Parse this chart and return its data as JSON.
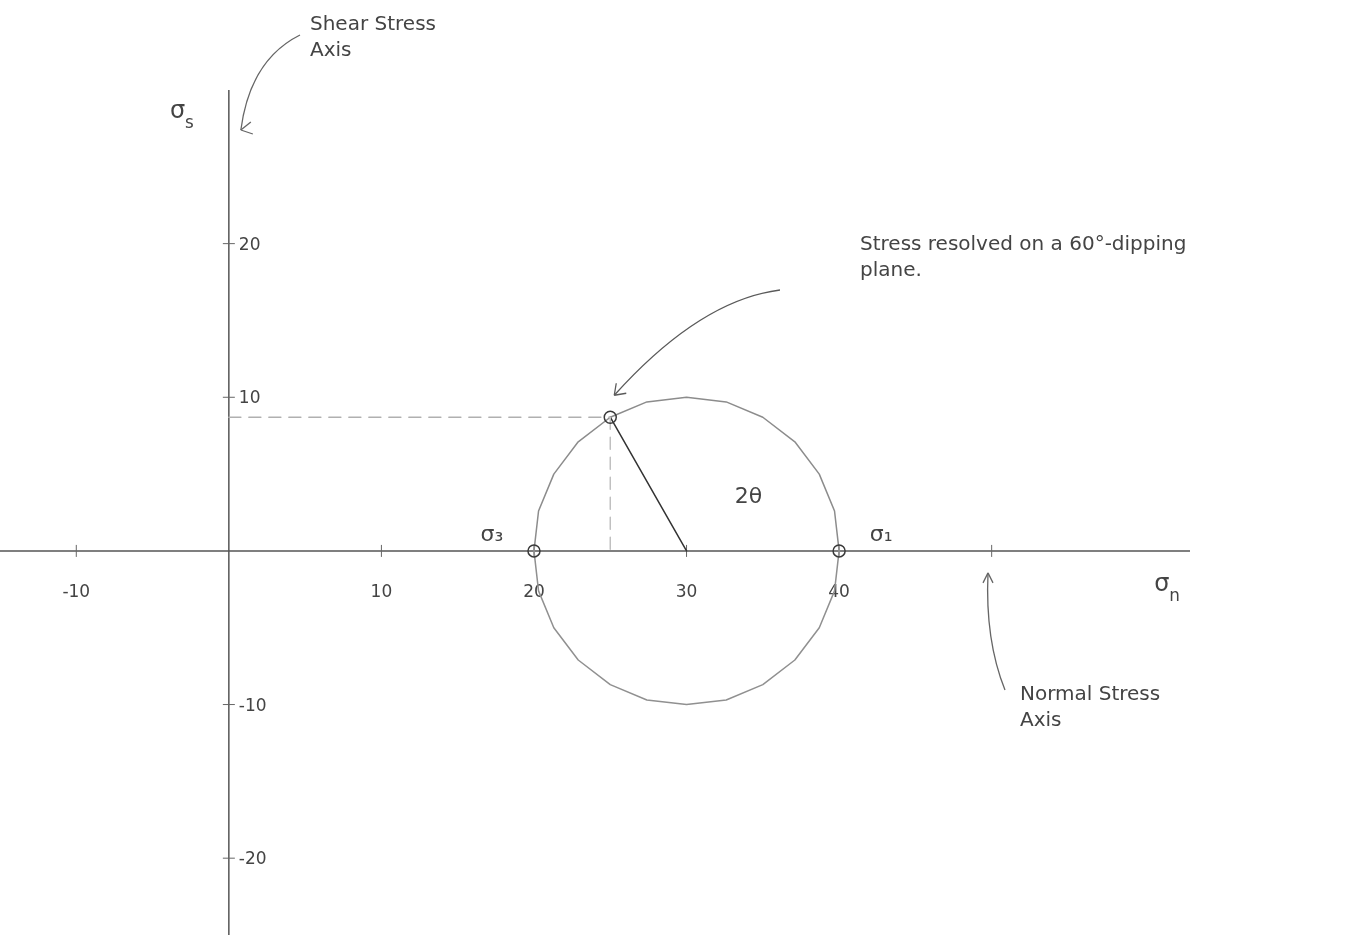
{
  "chart_data": {
    "type": "line",
    "xlabel": "σ$_{n}$",
    "ylabel": "σ$_{s}$",
    "xlim": [
      -15,
      63
    ],
    "ylim": [
      -25,
      30
    ],
    "xticks": [
      -10,
      10,
      20,
      30,
      40,
      {
        "value": 50,
        "label": null
      }
    ],
    "yticks": [
      -20,
      -10,
      10,
      20
    ],
    "grid": false,
    "series": [
      {
        "color": "#8c8c8c",
        "x": [
          20,
          20.3,
          21.3,
          22.9,
          25,
          27.4,
          30,
          32.6,
          35,
          37.1,
          38.7,
          39.7,
          40
        ],
        "values": [
          0,
          2.6,
          5,
          7.1,
          8.7,
          9.7,
          10,
          9.7,
          8.7,
          7.1,
          5,
          2.6,
          0
        ]
      },
      {
        "type": "line",
        "color": "#909090",
        "x": [
          20,
          20.3,
          21.3,
          22.9,
          25,
          27.4,
          30,
          32.6,
          35,
          37.1,
          38.7,
          39.7,
          40
        ],
        "values": [
          0,
          -2.6,
          -5,
          -7.1,
          -8.7,
          -9.7,
          -10,
          -9.7,
          -8.7,
          -7.1,
          -5,
          -2.6,
          0
        ]
      },
      {
        "type": "line",
        "color": "#333333",
        "x": [
          25,
          30
        ],
        "values": [
          8.7,
          0
        ]
      },
      {
        "type": "line",
        "color": "#b0b0b0",
        "line_style": "dashed",
        "x": [
          0,
          25
        ],
        "values": [
          8.7,
          8.7
        ]
      },
      {
        "type": "line",
        "color": "#c0c0c0",
        "line_style": "dashed",
        "x": [
          25,
          25
        ],
        "values": [
          8.7,
          0
        ]
      },
      {
        "type": "scatter",
        "marker": "circle",
        "color": "#3a3a3a",
        "x": [
          20,
          40,
          25
        ],
        "values": [
          0,
          0,
          8.7
        ]
      }
    ],
    "annotations": [
      {
        "text": "σ₃",
        "x": 20,
        "y": 0
      },
      {
        "text": "σ₁",
        "x": 40,
        "y": 0
      },
      {
        "text": "2θ",
        "x": 30,
        "y": 0
      },
      "Stress resolved on a 60°-dipping plane.",
      "Shear Stress Axis",
      "Normal Stress Axis"
    ]
  }
}
